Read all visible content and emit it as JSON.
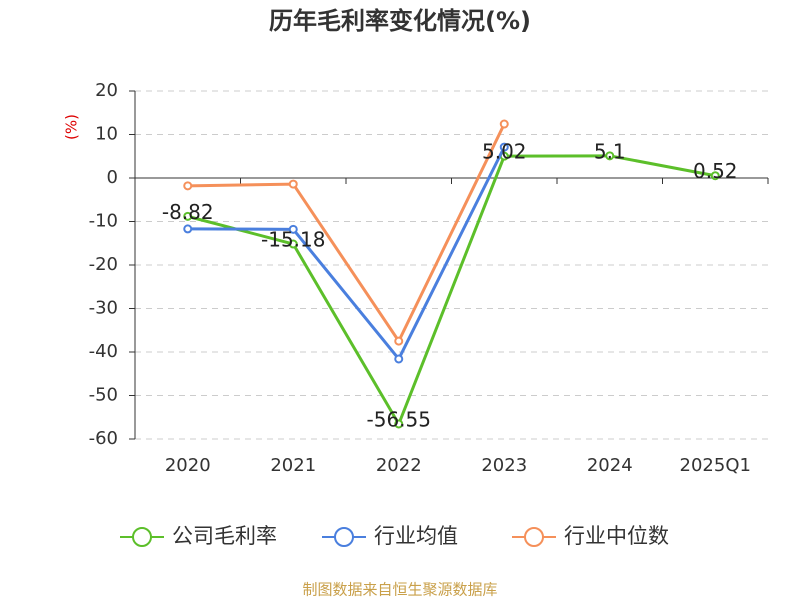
{
  "chart_data": {
    "type": "line",
    "title": "历年毛利率变化情况(%)",
    "y_label": "(%)",
    "categories": [
      "2020",
      "2021",
      "2022",
      "2023",
      "2024",
      "2025Q1"
    ],
    "series": [
      {
        "name": "公司毛利率",
        "color": "#5cbf2a",
        "values": [
          -8.82,
          -15.18,
          -56.55,
          5.02,
          5.1,
          0.52
        ],
        "data_labels": true
      },
      {
        "name": "行业均值",
        "color": "#4a7fde",
        "values": [
          -11.7,
          -11.8,
          -41.6,
          7.1,
          null,
          null
        ]
      },
      {
        "name": "行业中位数",
        "color": "#f5905a",
        "values": [
          -1.8,
          -1.4,
          -37.5,
          12.4,
          null,
          null
        ]
      }
    ],
    "ylim": [
      -60,
      20
    ],
    "yticks": [
      -60,
      -50,
      -40,
      -30,
      -20,
      -10,
      0,
      10,
      20
    ],
    "grid": true,
    "legend": "bottom",
    "footer": "制图数据来自恒生聚源数据库"
  }
}
